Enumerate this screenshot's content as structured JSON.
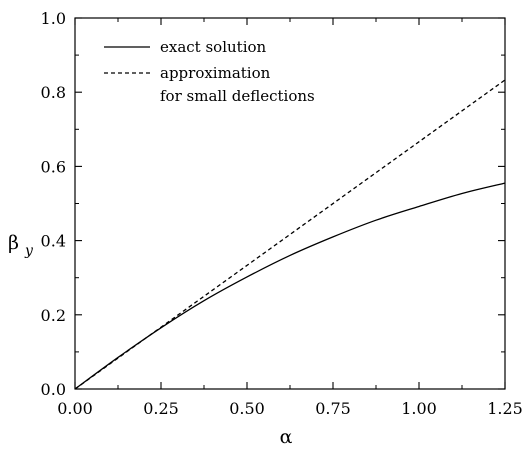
{
  "chart_data": {
    "type": "line",
    "title": "",
    "xlabel": "α",
    "ylabel_main": "β",
    "ylabel_sub": "y",
    "xlim": [
      0,
      1.25
    ],
    "ylim": [
      0,
      1.0
    ],
    "x_ticks": [
      "0.00",
      "0.25",
      "0.50",
      "0.75",
      "1.00",
      "1.25"
    ],
    "y_ticks": [
      "0.0",
      "0.2",
      "0.4",
      "0.6",
      "0.8",
      "1.0"
    ],
    "grid": false,
    "legend_position": "top-left",
    "series": [
      {
        "name": "exact solution",
        "style": "solid",
        "x": [
          0,
          0.125,
          0.25,
          0.375,
          0.5,
          0.625,
          0.75,
          0.875,
          1.0,
          1.125,
          1.25
        ],
        "y": [
          0,
          0.085,
          0.165,
          0.238,
          0.302,
          0.36,
          0.41,
          0.455,
          0.492,
          0.527,
          0.555
        ]
      },
      {
        "name": "approximation",
        "name_line2": "for small deflections",
        "style": "dashed",
        "x": [
          0,
          1.25
        ],
        "y": [
          0,
          0.833
        ]
      }
    ]
  }
}
